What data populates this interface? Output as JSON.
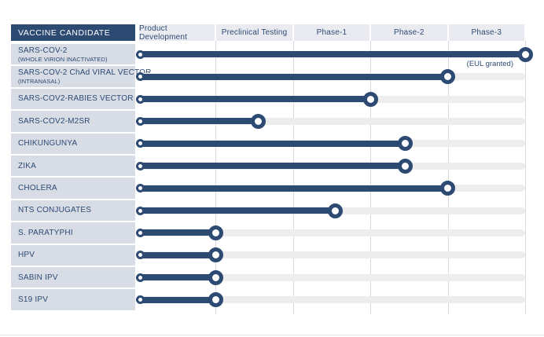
{
  "header": {
    "corner_label": "VACCINE CANDIDATE",
    "columns": [
      "Product Development",
      "Preclinical Testing",
      "Phase-1",
      "Phase-2",
      "Phase-3"
    ]
  },
  "colors": {
    "navy": "#2d4a73",
    "label_cell_bg": "#d7dce5",
    "header_band_bg": "#e9ebf0",
    "track_gray": "#ededed",
    "gridline_gray": "#dadada",
    "bottom_line_gray": "#e6e6e6",
    "cap_fill": "#fdfdfd",
    "white": "#ffffff"
  },
  "chart_data": {
    "type": "bar",
    "variant": "horizontal-lollipop-timeline",
    "title": "",
    "xlabel": "",
    "ylabel": "VACCINE CANDIDATE",
    "phases": [
      "Product Development",
      "Preclinical Testing",
      "Phase-1",
      "Phase-2",
      "Phase-3"
    ],
    "xlim_phase_units": [
      0,
      5
    ],
    "grid": "vertical-only",
    "legend": "none",
    "progress_unit_note": "progress in phase-columns completed: 1 = end of Product Development, 2 = end of Preclinical Testing, 3 = end of Phase-1, 4 = end of Phase-2, 5 = end of Phase-3",
    "rows": [
      {
        "label": "SARS-COV-2",
        "sublabel": "(WHOLE VIRION INACTIVATED)",
        "progress": 5.0,
        "annotation": "(EUL granted)"
      },
      {
        "label": "SARS-COV-2 ChAd VIRAL VECTOR",
        "sublabel": "(INTRANASAL)",
        "progress": 4.0
      },
      {
        "label": "SARS-COV2-RABIES VECTOR",
        "progress": 3.0
      },
      {
        "label": "SARS-COV2-M2SR",
        "progress": 1.55
      },
      {
        "label": "CHIKUNGUNYA",
        "progress": 3.45
      },
      {
        "label": "ZIKA",
        "progress": 3.45
      },
      {
        "label": "CHOLERA",
        "progress": 4.0
      },
      {
        "label": "NTS CONJUGATES",
        "progress": 2.55
      },
      {
        "label": "S. PARATYPHI",
        "progress": 1.0
      },
      {
        "label": "HPV",
        "progress": 1.0
      },
      {
        "label": "SABIN IPV",
        "progress": 1.0
      },
      {
        "label": "S19 IPV",
        "progress": 1.0
      }
    ]
  }
}
